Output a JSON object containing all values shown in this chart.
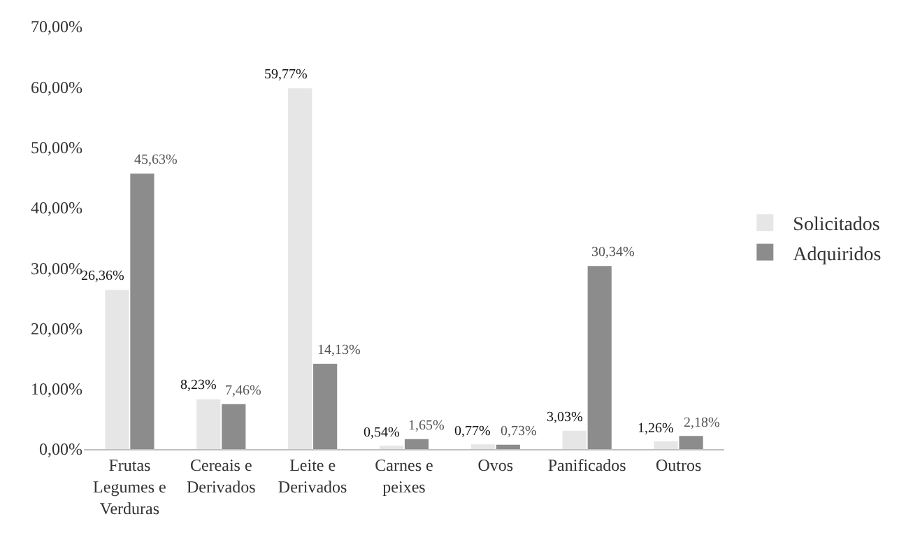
{
  "chart_data": {
    "type": "bar",
    "categories": [
      "Frutas\nLegumes e\nVerduras",
      "Cereais e\nDerivados",
      "Leite e\nDerivados",
      "Carnes e\npeixes",
      "Ovos",
      "Panificados",
      "Outros"
    ],
    "series": [
      {
        "name": "Solicitados",
        "color": "#e6e6e6",
        "values": [
          26.36,
          8.23,
          59.77,
          0.54,
          0.77,
          3.03,
          1.26
        ],
        "value_labels": [
          "26,36%",
          "8,23%",
          "59,77%",
          "0,54%",
          "0,77%",
          "3,03%",
          "1,26%"
        ]
      },
      {
        "name": "Adquiridos",
        "color": "#8c8c8c",
        "values": [
          45.63,
          7.46,
          14.13,
          1.65,
          0.73,
          30.34,
          2.18
        ],
        "value_labels": [
          "45,63%",
          "7,46%",
          "14,13%",
          "1,65%",
          "0,73%",
          "30,34%",
          "2,18%"
        ]
      }
    ],
    "ylim": [
      0,
      70
    ],
    "yticks": [
      {
        "value": 0,
        "label": "0,00%"
      },
      {
        "value": 10,
        "label": "10,00%"
      },
      {
        "value": 20,
        "label": "20,00%"
      },
      {
        "value": 30,
        "label": "30,00%"
      },
      {
        "value": 40,
        "label": "40,00%"
      },
      {
        "value": 50,
        "label": "50,00%"
      },
      {
        "value": 60,
        "label": "60,00%"
      },
      {
        "value": 70,
        "label": "70,00%"
      }
    ],
    "legend": "right"
  }
}
